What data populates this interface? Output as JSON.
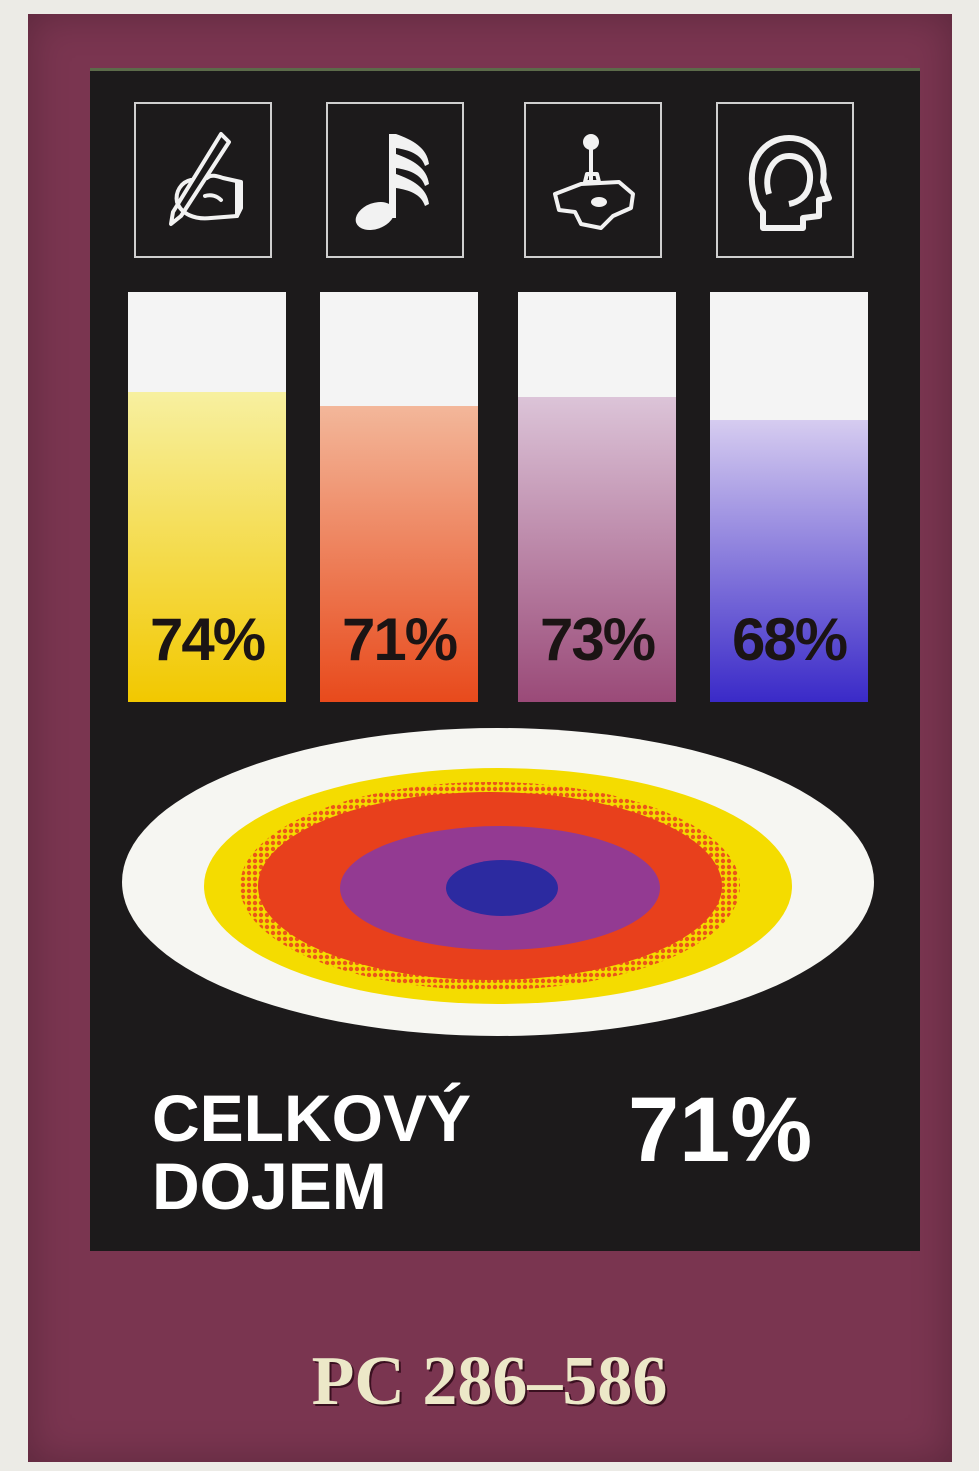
{
  "ratings": [
    {
      "name": "pencil-hand-icon",
      "value": 74,
      "label": "74%",
      "top_color": "#f7f0a0",
      "bottom_color": "#f2c800"
    },
    {
      "name": "music-note-icon",
      "value": 71,
      "label": "71%",
      "top_color": "#f3b79a",
      "bottom_color": "#e84a1c"
    },
    {
      "name": "joystick-icon",
      "value": 73,
      "label": "73%",
      "top_color": "#dcc4d8",
      "bottom_color": "#9a4a78"
    },
    {
      "name": "head-profile-icon",
      "value": 68,
      "label": "68%",
      "top_color": "#d6ccf0",
      "bottom_color": "#3a2ac8"
    }
  ],
  "overall": {
    "label_line1": "CELKOVÝ",
    "label_line2": "DOJEM",
    "value": "71%"
  },
  "platform": "PC 286–586",
  "colors": {
    "frame": "#7a3550",
    "panel": "#1c1a1b",
    "plate_yellow": "#f4dc00",
    "plate_red": "#e8401c",
    "plate_purple": "#8a3aa0",
    "plate_blue": "#2c2aa0"
  }
}
